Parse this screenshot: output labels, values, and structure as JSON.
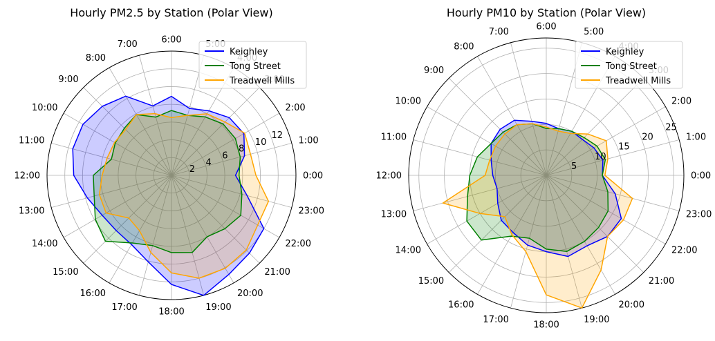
{
  "chart_data": [
    {
      "type": "radar",
      "title": "Hourly PM2.5 by Station (Polar View)",
      "categories": [
        "0:00",
        "1:00",
        "2:00",
        "3:00",
        "4:00",
        "5:00",
        "6:00",
        "7:00",
        "8:00",
        "9:00",
        "10:00",
        "11:00",
        "12:00",
        "13:00",
        "14:00",
        "15:00",
        "16:00",
        "17:00",
        "18:00",
        "19:00",
        "20:00",
        "21:00",
        "22:00",
        "23:00"
      ],
      "rlim": [
        0,
        14
      ],
      "rticks": [
        "2",
        "4",
        "6",
        "8",
        "10",
        "12"
      ],
      "rtick_values": [
        2,
        4,
        6,
        8,
        10,
        12
      ],
      "grid": true,
      "legend": "top-right",
      "series": [
        {
          "name": "Keighley",
          "color": "#0000ff",
          "values": [
            7.2,
            8.5,
            9.4,
            9.2,
            8.4,
            7.8,
            8.9,
            8.1,
            10.3,
            11.0,
            11.5,
            11.5,
            11.0,
            9.8,
            9.0,
            8.8,
            9.0,
            10.1,
            12.3,
            14.0,
            12.9,
            12.4,
            12.0,
            8.8
          ]
        },
        {
          "name": "Tong Street",
          "color": "#008000",
          "values": [
            7.6,
            8.0,
            8.3,
            8.2,
            7.6,
            7.0,
            7.3,
            6.8,
            7.9,
            7.5,
            7.3,
            7.0,
            8.8,
            9.0,
            9.9,
            10.5,
            8.8,
            8.2,
            8.7,
            9.0,
            8.0,
            8.5,
            9.0,
            8.2
          ]
        },
        {
          "name": "Treadwell Mills",
          "color": "#ffa500",
          "values": [
            9.5,
            9.2,
            9.5,
            8.5,
            8.0,
            7.0,
            6.5,
            7.2,
            7.9,
            7.3,
            7.4,
            7.5,
            7.8,
            8.4,
            8.5,
            6.8,
            7.2,
            9.0,
            11.0,
            12.0,
            12.1,
            11.9,
            11.2,
            11.3
          ]
        }
      ]
    },
    {
      "type": "radar",
      "title": "Hourly PM10 by Station (Polar View)",
      "categories": [
        "0:00",
        "1:00",
        "2:00",
        "3:00",
        "4:00",
        "5:00",
        "6:00",
        "7:00",
        "8:00",
        "9:00",
        "10:00",
        "11:00",
        "12:00",
        "13:00",
        "14:00",
        "15:00",
        "16:00",
        "17:00",
        "18:00",
        "19:00",
        "20:00",
        "21:00",
        "22:00",
        "23:00"
      ],
      "rlim": [
        0,
        27
      ],
      "rticks": [
        "5",
        "10",
        "15",
        "20",
        "25"
      ],
      "rtick_values": [
        5,
        10,
        15,
        20,
        25
      ],
      "grid": true,
      "legend": "top-right",
      "series": [
        {
          "name": "Keighley",
          "color": "#0000ff",
          "values": [
            11.0,
            11.5,
            10.8,
            10.0,
            10.0,
            9.5,
            10.2,
            11.0,
            12.5,
            12.8,
            12.5,
            11.2,
            10.5,
            10.0,
            11.0,
            12.5,
            13.0,
            14.2,
            15.0,
            16.5,
            16.0,
            17.0,
            17.0,
            14.0
          ]
        },
        {
          "name": "Tong Street",
          "color": "#008000",
          "values": [
            11.0,
            12.0,
            11.5,
            10.5,
            10.0,
            9.5,
            9.2,
            10.5,
            11.5,
            12.0,
            12.5,
            14.0,
            15.0,
            16.0,
            18.0,
            18.0,
            13.8,
            12.8,
            14.5,
            15.5,
            15.0,
            14.5,
            14.0,
            12.5
          ]
        },
        {
          "name": "Treadwell Mills",
          "color": "#ffa500",
          "values": [
            11.5,
            12.5,
            13.6,
            11.5,
            9.5,
            9.0,
            9.5,
            10.5,
            11.5,
            11.5,
            11.5,
            11.5,
            12.0,
            21.0,
            15.0,
            11.5,
            13.5,
            15.5,
            23.5,
            27.0,
            21.5,
            17.0,
            17.5,
            17.5
          ]
        }
      ]
    }
  ]
}
